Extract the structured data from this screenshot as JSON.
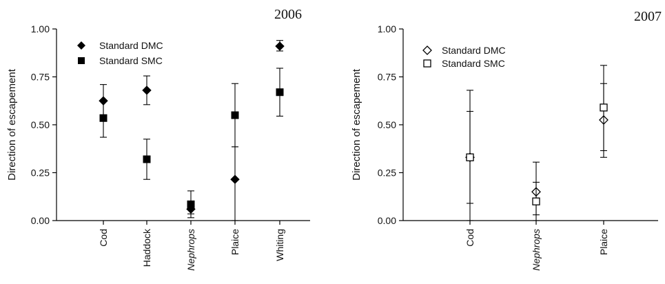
{
  "chart_data": [
    {
      "type": "scatter",
      "title": "2006",
      "xlabel": "",
      "ylabel": "Direction of escapement",
      "ylim": [
        0,
        1
      ],
      "yticks": [
        "0.00",
        "0.25",
        "0.50",
        "0.75",
        "1.00"
      ],
      "categories": [
        "Cod",
        "Haddock",
        "Nephrops",
        "Plaice",
        "Whiting"
      ],
      "italic_categories": [
        "Nephrops"
      ],
      "legend_position": "top-left",
      "grid": false,
      "series": [
        {
          "name": "Standard DMC",
          "marker": "diamond-filled",
          "values": [
            0.625,
            0.68,
            0.06,
            0.215,
            0.91
          ],
          "err_low": [
            0.535,
            0.605,
            0.015,
            0.0,
            0.885
          ],
          "err_high": [
            0.71,
            0.755,
            0.1,
            0.385,
            0.94
          ]
        },
        {
          "name": "Standard SMC",
          "marker": "square-filled",
          "values": [
            0.535,
            0.32,
            0.085,
            0.55,
            0.67
          ],
          "err_low": [
            0.435,
            0.215,
            0.035,
            0.385,
            0.545
          ],
          "err_high": [
            0.63,
            0.425,
            0.155,
            0.715,
            0.795
          ]
        }
      ]
    },
    {
      "type": "scatter",
      "title": "2007",
      "xlabel": "",
      "ylabel": "Direction of escapement",
      "ylim": [
        0,
        1
      ],
      "yticks": [
        "0.00",
        "0.25",
        "0.50",
        "0.75",
        "1.00"
      ],
      "categories": [
        "Cod",
        "Nephrops",
        "Plaice"
      ],
      "italic_categories": [
        "Nephrops"
      ],
      "legend_position": "top-left",
      "grid": false,
      "series": [
        {
          "name": "Standard DMC",
          "marker": "diamond-open",
          "values": [
            0.33,
            0.15,
            0.525
          ],
          "err_low": [
            0.09,
            0.03,
            0.365
          ],
          "err_high": [
            0.57,
            0.305,
            0.715
          ]
        },
        {
          "name": "Standard SMC",
          "marker": "square-open",
          "values": [
            0.33,
            0.1,
            0.59
          ],
          "err_low": [
            0.0,
            0.0,
            0.33
          ],
          "err_high": [
            0.68,
            0.2,
            0.81
          ]
        }
      ]
    }
  ]
}
